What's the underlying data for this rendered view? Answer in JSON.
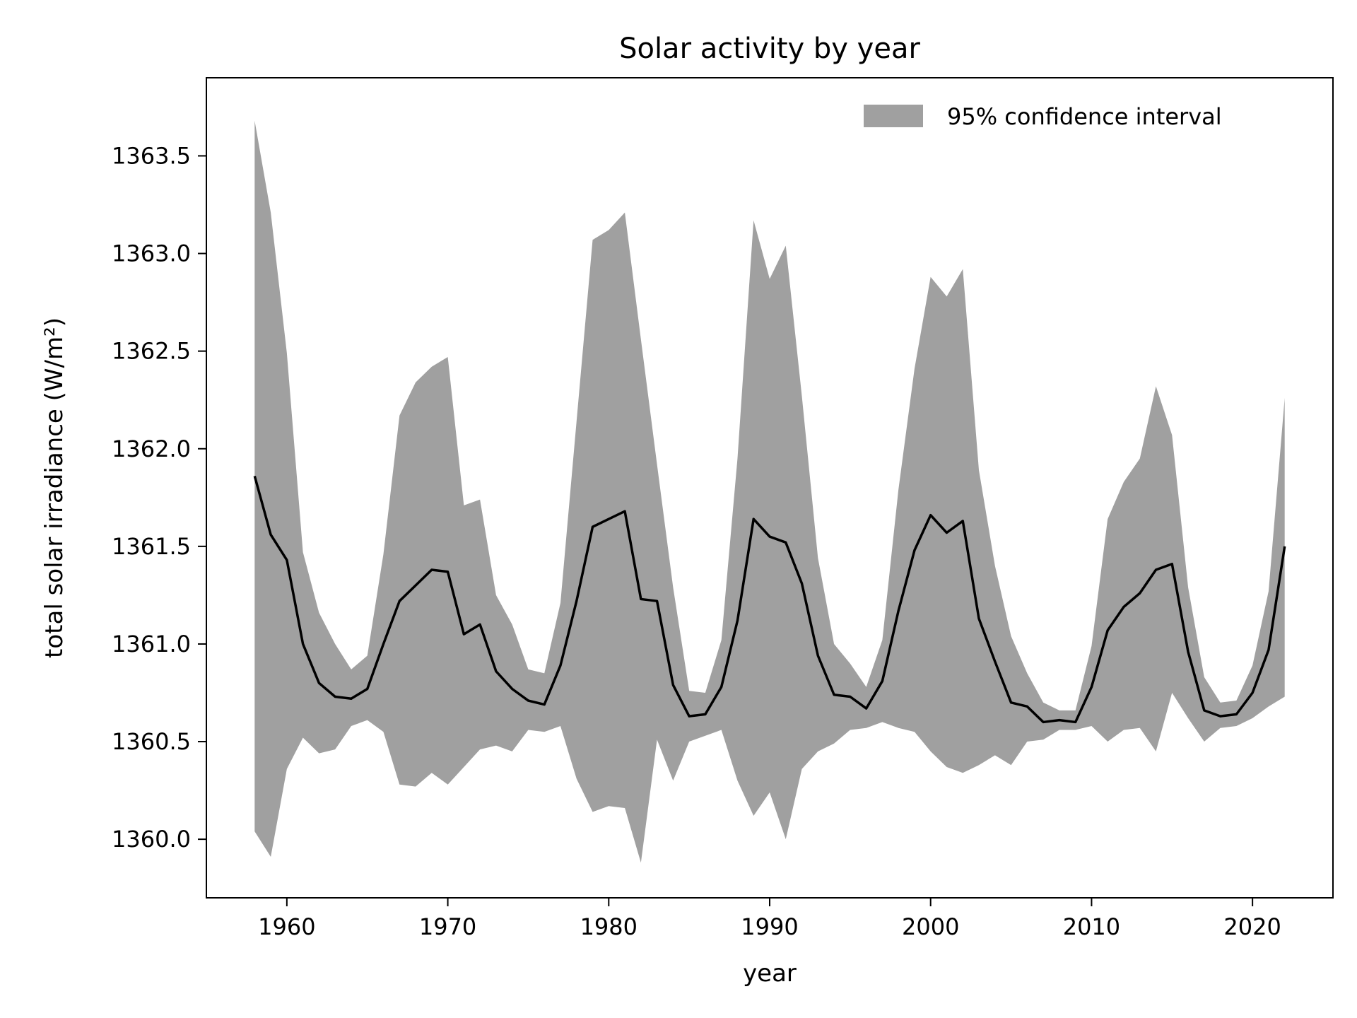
{
  "chart_data": {
    "type": "line",
    "title": "Solar activity by year",
    "xlabel": "year",
    "ylabel": "total solar irradiance (W/m²)",
    "xlim": [
      1955,
      2025
    ],
    "ylim": [
      1359.7,
      1363.9
    ],
    "xticks": [
      1960,
      1970,
      1980,
      1990,
      2000,
      2010,
      2020
    ],
    "xtick_labels": [
      "1960",
      "1970",
      "1980",
      "1990",
      "2000",
      "2010",
      "2020"
    ],
    "yticks": [
      1360.0,
      1360.5,
      1361.0,
      1361.5,
      1362.0,
      1362.5,
      1363.0,
      1363.5
    ],
    "ytick_labels": [
      "1360.0",
      "1360.5",
      "1361.0",
      "1361.5",
      "1362.0",
      "1362.5",
      "1363.0",
      "1363.5"
    ],
    "grid": false,
    "legend": {
      "position": "top-right",
      "entries": [
        "95% confidence interval"
      ]
    },
    "colors": {
      "line": "#000000",
      "band": "#a0a0a0"
    },
    "x": [
      1958,
      1959,
      1960,
      1961,
      1962,
      1963,
      1964,
      1965,
      1966,
      1967,
      1968,
      1969,
      1970,
      1971,
      1972,
      1973,
      1974,
      1975,
      1976,
      1977,
      1978,
      1979,
      1980,
      1981,
      1982,
      1983,
      1984,
      1985,
      1986,
      1987,
      1988,
      1989,
      1990,
      1991,
      1992,
      1993,
      1994,
      1995,
      1996,
      1997,
      1998,
      1999,
      2000,
      2001,
      2002,
      2003,
      2004,
      2005,
      2006,
      2007,
      2008,
      2009,
      2010,
      2011,
      2012,
      2013,
      2014,
      2015,
      2016,
      2017,
      2018,
      2019,
      2020,
      2021,
      2022
    ],
    "series": [
      {
        "values": [
          1361.86,
          1361.56,
          1361.43,
          1361.0,
          1360.8,
          1360.73,
          1360.72,
          1360.77,
          1361.0,
          1361.22,
          1361.3,
          1361.38,
          1361.37,
          1361.05,
          1361.1,
          1360.86,
          1360.77,
          1360.71,
          1360.69,
          1360.89,
          1361.22,
          1361.6,
          1361.64,
          1361.68,
          1361.23,
          1361.22,
          1360.79,
          1360.63,
          1360.64,
          1360.78,
          1361.12,
          1361.64,
          1361.55,
          1361.52,
          1361.31,
          1360.94,
          1360.74,
          1360.73,
          1360.67,
          1360.81,
          1361.17,
          1361.48,
          1361.66,
          1361.57,
          1361.63,
          1361.13,
          1360.91,
          1360.7,
          1360.68,
          1360.6,
          1360.61,
          1360.6,
          1360.78,
          1361.07,
          1361.19,
          1361.26,
          1361.38,
          1361.41,
          1360.96,
          1360.66,
          1360.63,
          1360.64,
          1360.75,
          1360.97,
          1361.5
        ]
      }
    ],
    "band": {
      "name": "95% confidence interval",
      "upper": [
        1363.68,
        1363.21,
        1362.49,
        1361.47,
        1361.16,
        1361.0,
        1360.87,
        1360.94,
        1361.46,
        1362.17,
        1362.34,
        1362.42,
        1362.47,
        1361.71,
        1361.74,
        1361.25,
        1361.1,
        1360.87,
        1360.85,
        1361.21,
        1362.14,
        1363.07,
        1363.12,
        1363.21,
        1362.56,
        1361.92,
        1361.29,
        1360.76,
        1360.75,
        1361.02,
        1361.95,
        1363.17,
        1362.87,
        1363.04,
        1362.27,
        1361.44,
        1361.0,
        1360.9,
        1360.78,
        1361.02,
        1361.79,
        1362.41,
        1362.88,
        1362.78,
        1362.92,
        1361.89,
        1361.4,
        1361.04,
        1360.85,
        1360.7,
        1360.66,
        1360.66,
        1360.99,
        1361.64,
        1361.83,
        1361.95,
        1362.32,
        1362.07,
        1361.29,
        1360.83,
        1360.7,
        1360.71,
        1360.89,
        1361.27,
        1362.26
      ],
      "lower": [
        1360.04,
        1359.91,
        1360.36,
        1360.52,
        1360.44,
        1360.46,
        1360.58,
        1360.61,
        1360.55,
        1360.28,
        1360.27,
        1360.34,
        1360.28,
        1360.37,
        1360.46,
        1360.48,
        1360.45,
        1360.56,
        1360.55,
        1360.58,
        1360.31,
        1360.14,
        1360.17,
        1360.16,
        1359.88,
        1360.51,
        1360.3,
        1360.5,
        1360.53,
        1360.56,
        1360.3,
        1360.12,
        1360.24,
        1360.0,
        1360.36,
        1360.45,
        1360.49,
        1360.56,
        1360.57,
        1360.6,
        1360.57,
        1360.55,
        1360.45,
        1360.37,
        1360.34,
        1360.38,
        1360.43,
        1360.38,
        1360.5,
        1360.51,
        1360.56,
        1360.56,
        1360.58,
        1360.5,
        1360.56,
        1360.57,
        1360.45,
        1360.75,
        1360.62,
        1360.5,
        1360.57,
        1360.58,
        1360.62,
        1360.68,
        1360.73
      ]
    }
  }
}
